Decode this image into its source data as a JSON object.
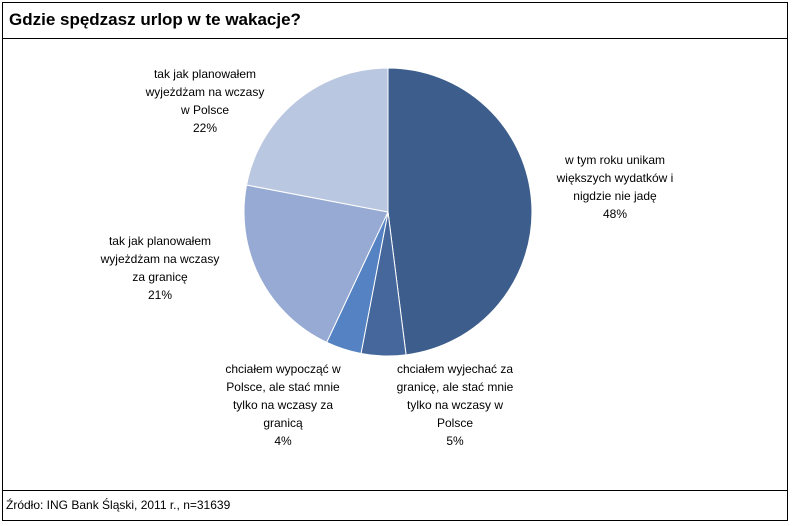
{
  "chart_data": {
    "type": "pie",
    "title": "Gdzie spędzasz urlop w te wakacje?",
    "source": "Źródło: ING Bank Śląski, 2011 r., n=31639",
    "slices": [
      {
        "lines": [
          "w tym roku unikam",
          "większych wydatków i",
          "nigdzie nie jadę"
        ],
        "pct_label": "48%",
        "value": 48,
        "color": "#3d5d8c"
      },
      {
        "lines": [
          "chciałem wyjechać za",
          "granicę, ale stać mnie",
          "tylko na wczasy w",
          "Polsce"
        ],
        "pct_label": "5%",
        "value": 5,
        "color": "#45679b"
      },
      {
        "lines": [
          "chciałem wypocząć w",
          "Polsce, ale stać mnie",
          "tylko na wczasy za",
          "granicą"
        ],
        "pct_label": "4%",
        "value": 4,
        "color": "#5482c2"
      },
      {
        "lines": [
          "tak jak planowałem",
          "wyjeżdżam na wczasy",
          "za granicę"
        ],
        "pct_label": "21%",
        "value": 21,
        "color": "#97aad3"
      },
      {
        "lines": [
          "tak jak planowałem",
          "wyjeżdżam na wczasy",
          "w Polsce"
        ],
        "pct_label": "22%",
        "value": 22,
        "color": "#bac7e0"
      }
    ]
  }
}
